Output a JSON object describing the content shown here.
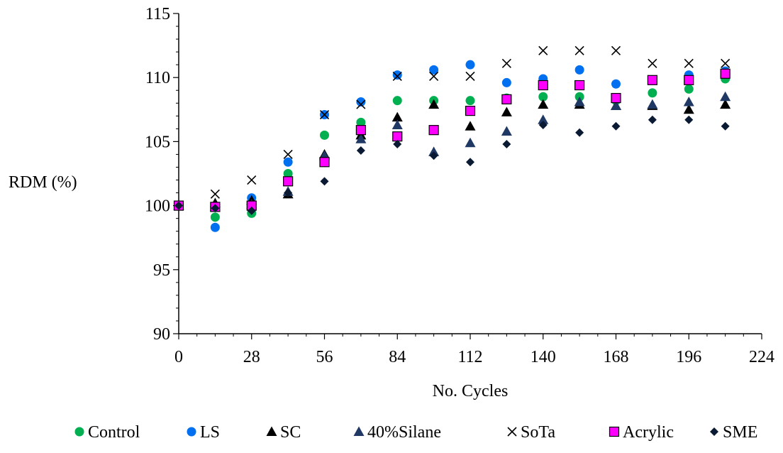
{
  "chart_data": {
    "type": "scatter",
    "title": "",
    "xlabel": "No. Cycles",
    "ylabel": "RDM (%)",
    "xlim": [
      0,
      224
    ],
    "ylim": [
      90,
      115
    ],
    "xticks": [
      0,
      28,
      56,
      84,
      112,
      140,
      168,
      196,
      224
    ],
    "yticks": [
      90,
      95,
      100,
      105,
      110,
      115
    ],
    "grid": false,
    "legend": "bottom",
    "x": [
      0,
      14,
      28,
      42,
      56,
      70,
      84,
      98,
      112,
      126,
      140,
      154,
      168,
      182,
      196,
      210
    ],
    "series": [
      {
        "name": "Control",
        "marker": "circle",
        "color": "#00b050",
        "values": [
          100,
          99.1,
          99.4,
          102.5,
          105.5,
          106.5,
          108.2,
          108.2,
          108.2,
          108.4,
          108.5,
          108.5,
          108.2,
          108.8,
          109.1,
          109.9
        ]
      },
      {
        "name": "LS",
        "marker": "circle",
        "color": "#0070f0",
        "values": [
          100,
          98.3,
          100.6,
          103.4,
          107.1,
          108.1,
          110.2,
          110.6,
          111.0,
          109.6,
          109.9,
          110.6,
          109.5,
          109.8,
          110.2,
          110.5
        ]
      },
      {
        "name": "SC",
        "marker": "triangle",
        "color": "#000000",
        "values": [
          100,
          100.2,
          100.4,
          100.9,
          104.0,
          105.5,
          106.9,
          107.9,
          106.2,
          107.3,
          107.9,
          107.9,
          107.8,
          107.8,
          107.5,
          107.9
        ]
      },
      {
        "name": "40%Silane",
        "marker": "triangle",
        "color": "#1f3864",
        "values": [
          100,
          99.9,
          100.1,
          101.1,
          103.9,
          105.2,
          106.3,
          104.2,
          104.9,
          105.8,
          106.7,
          108.1,
          107.8,
          107.9,
          108.1,
          108.5
        ]
      },
      {
        "name": "SoTa",
        "marker": "cross",
        "color": "#000000",
        "values": [
          100,
          100.9,
          102.0,
          104.0,
          107.1,
          107.9,
          110.1,
          110.1,
          110.1,
          111.1,
          112.1,
          112.1,
          112.1,
          111.1,
          111.1,
          111.1
        ]
      },
      {
        "name": "Acrylic",
        "marker": "square",
        "color": "#ff00ff",
        "values": [
          100,
          99.9,
          100.0,
          101.9,
          103.4,
          105.9,
          105.4,
          105.9,
          107.4,
          108.3,
          109.4,
          109.4,
          108.4,
          109.8,
          109.8,
          110.3
        ]
      },
      {
        "name": "SME",
        "marker": "diamond",
        "color": "#0b1a33",
        "values": [
          100,
          99.8,
          99.6,
          101.0,
          101.9,
          104.3,
          104.8,
          103.9,
          103.4,
          104.8,
          106.3,
          105.7,
          106.2,
          106.7,
          106.7,
          106.2
        ]
      }
    ]
  }
}
